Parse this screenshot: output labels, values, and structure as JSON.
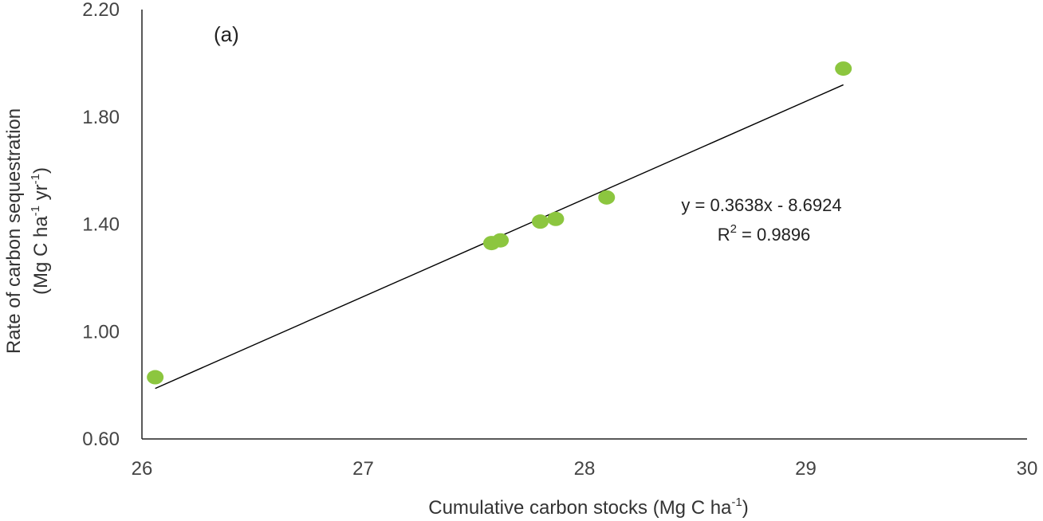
{
  "chart_data": {
    "type": "scatter",
    "panel_label": "(a)",
    "xlabel": {
      "text": "Cumulative carbon stocks (Mg C ha",
      "sup": "-1",
      "close": ")"
    },
    "ylabel": {
      "line1": "Rate of carbon sequestration",
      "line2_parts": [
        "(Mg C ha",
        "-1",
        " yr",
        "-1",
        ")"
      ]
    },
    "xlim": [
      26,
      30
    ],
    "ylim": [
      0.6,
      2.2
    ],
    "x_ticks": [
      26,
      27,
      28,
      29,
      30
    ],
    "x_tick_labels": [
      "26",
      "27",
      "28",
      "29",
      "30"
    ],
    "y_ticks": [
      0.6,
      1.0,
      1.4,
      1.8,
      2.2
    ],
    "y_tick_labels": [
      "0.60",
      "1.00",
      "1.40",
      "1.80",
      "2.20"
    ],
    "grid": false,
    "series": [
      {
        "x": [
          26.06,
          27.58,
          27.62,
          27.8,
          27.87,
          28.1,
          29.17
        ],
        "y": [
          0.83,
          1.33,
          1.34,
          1.41,
          1.42,
          1.5,
          1.98
        ],
        "color": "#8CC63F"
      }
    ],
    "trendline": {
      "slope": 0.3638,
      "intercept": -8.6924,
      "x_range": [
        26.06,
        29.17
      ],
      "color": "#000000"
    },
    "equation_text": "y = 0.3638x - 8.6924",
    "r2_text_prefix": "R",
    "r2_text_sup": "2",
    "r2_text_suffix": " = 0.9896"
  }
}
